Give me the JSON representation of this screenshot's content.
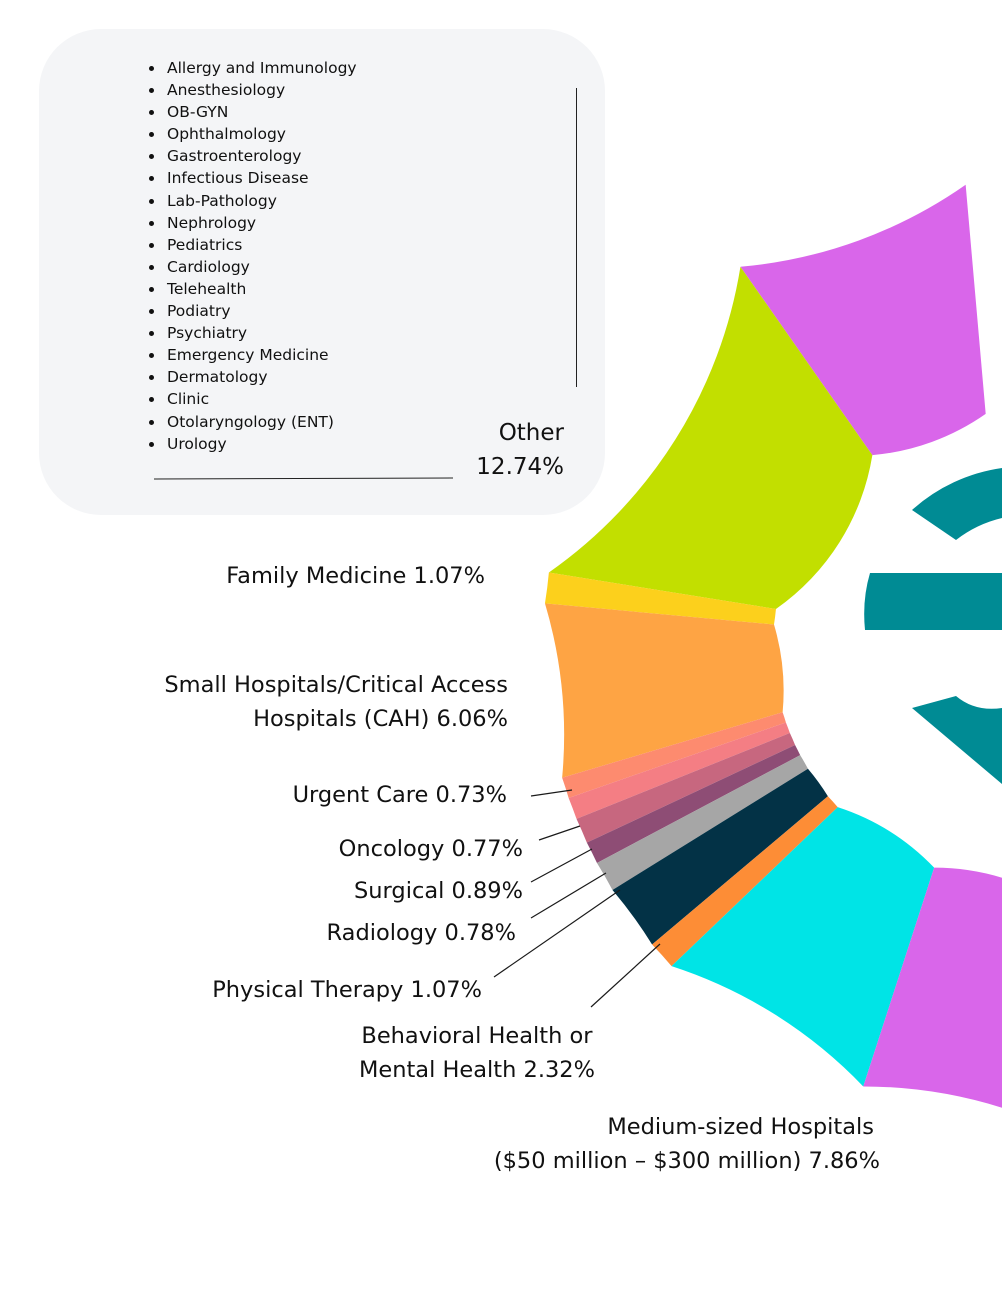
{
  "chart_data": {
    "type": "pie",
    "slices": [
      {
        "label": "Other",
        "value": 12.74,
        "color": "#c2df00"
      },
      {
        "label": "Family Medicine",
        "value": 1.07,
        "color": "#fcd01c"
      },
      {
        "label": "Small Hospitals/Critical Access Hospitals (CAH)",
        "value": 6.06,
        "color": "#fea444"
      },
      {
        "label": "Urgent Care",
        "value": 0.73,
        "color": "#fd8b6f"
      },
      {
        "label": "Oncology",
        "value": 0.77,
        "color": "#f47e84"
      },
      {
        "label": "Surgical",
        "value": 0.89,
        "color": "#c7677f"
      },
      {
        "label": "Radiology",
        "value": 0.78,
        "color": "#8e4d75"
      },
      {
        "label": "Physical Therapy",
        "value": 1.07,
        "color": "#a6a6a6"
      },
      {
        "label": "Behavioral Health or Mental Health",
        "value": 2.32,
        "color": "#033246"
      },
      {
        "label": "",
        "value": 1.0,
        "color": "#fd8d36"
      },
      {
        "label": "Medium-sized Hospitals ($50 million – $300 million)",
        "value": 7.86,
        "color": "#00e4e6"
      }
    ],
    "labels": {
      "other": [
        "Other",
        "12.74%"
      ],
      "family": [
        "Family Medicine 1.07%"
      ],
      "small": [
        "Small Hospitals/Critical Access",
        "Hospitals (CAH) 6.06%"
      ],
      "urgent": [
        "Urgent Care 0.73%"
      ],
      "oncology": [
        "Oncology 0.77%"
      ],
      "surgical": [
        "Surgical 0.89%"
      ],
      "radiology": [
        "Radiology 0.78%"
      ],
      "physical": [
        "Physical Therapy 1.07%"
      ],
      "behavioral": [
        "Behavioral Health or",
        "Mental Health 2.32%"
      ],
      "medium": [
        "Medium-sized Hospitals",
        "($50 million – $300 million) 7.86%"
      ]
    },
    "other_breakdown": [
      "Allergy and Immunology",
      "Anesthesiology",
      "OB-GYN",
      "Ophthalmology",
      "Gastroenterology",
      "Infectious Disease",
      "Lab-Pathology",
      "Nephrology",
      "Pediatrics",
      "Cardiology",
      "Telehealth",
      "Podiatry",
      "Psychiatry",
      "Emergency Medicine",
      "Dermatology",
      "Clinic",
      "Otolaryngology (ENT)",
      "Urology"
    ],
    "purple_color": "#d966ea",
    "logo_color": "#008b94"
  }
}
